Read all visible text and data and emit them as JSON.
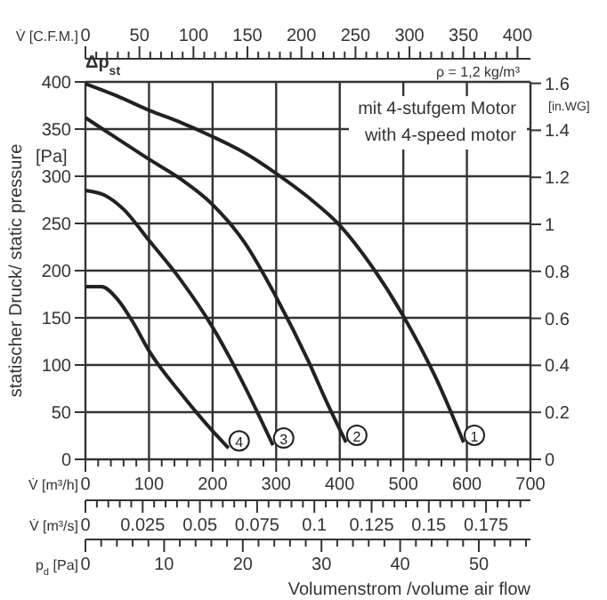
{
  "chart_data": {
    "type": "line",
    "ylabel": "statischer Druck/ static pressure",
    "y2label": "[in.WG]",
    "xlabel": "V̇ [m³/h]",
    "x2label": "V̇ [C.F.M.]",
    "annotations": [
      "[Pa]",
      "Δp$_{st}$",
      "ρ = 1,2 kg/m³",
      "mit 4-stufgem Motor",
      "with 4-speed motor",
      "V̇ [m³/s]",
      "0",
      "0.025",
      "0.05",
      "0.075",
      "0.1",
      "0.125",
      "0.15",
      "0.175",
      "p$_{d}$ [Pa]",
      "0",
      "10",
      "20",
      "30",
      "40",
      "50",
      "Volumenstrom /volume air flow"
    ],
    "xlim": [
      0,
      700
    ],
    "xticks": [
      0,
      100,
      200,
      300,
      400,
      500,
      600,
      700
    ],
    "ylim": [
      0,
      400
    ],
    "yticks": [
      0,
      50,
      100,
      150,
      200,
      250,
      300,
      350,
      400
    ],
    "y2lim": [
      0,
      1.606
    ],
    "y2ticks": [
      0,
      0.2,
      0.4,
      0.6,
      0.8,
      1,
      1.2,
      1.4,
      1.6
    ],
    "x2lim": [
      0,
      412
    ],
    "x2ticks": [
      0,
      50,
      100,
      150,
      200,
      250,
      300,
      350,
      400
    ],
    "grid": true,
    "marker": "none",
    "line_style": "solid",
    "series": [
      {
        "name": "1",
        "color": "#222222",
        "x": [
          0,
          50,
          100,
          150,
          200,
          250,
          300,
          350,
          400,
          450,
          500,
          550,
          595
        ],
        "values": [
          398,
          385,
          370,
          357,
          342,
          325,
          303,
          278,
          248,
          205,
          152,
          88,
          18
        ]
      },
      {
        "name": "2",
        "color": "#222222",
        "x": [
          0,
          50,
          100,
          150,
          200,
          250,
          300,
          350,
          380,
          410
        ],
        "values": [
          362,
          340,
          318,
          297,
          270,
          230,
          172,
          105,
          60,
          18
        ]
      },
      {
        "name": "3",
        "color": "#222222",
        "x": [
          0,
          30,
          60,
          100,
          150,
          200,
          250,
          295
        ],
        "values": [
          285,
          280,
          265,
          232,
          190,
          140,
          78,
          15
        ]
      },
      {
        "name": "4",
        "color": "#222222",
        "x": [
          0,
          25,
          50,
          75,
          100,
          150,
          200,
          225
        ],
        "values": [
          183,
          183,
          170,
          145,
          115,
          70,
          30,
          12
        ]
      }
    ]
  }
}
